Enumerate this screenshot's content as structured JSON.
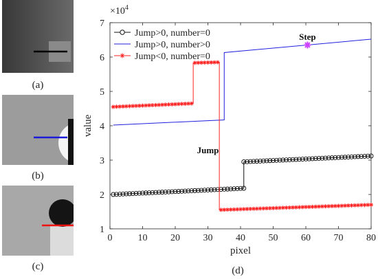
{
  "panels": [
    {
      "label": "(a)"
    },
    {
      "label": "(b)"
    },
    {
      "label": "(c)"
    },
    {
      "label": "(d)"
    }
  ],
  "colors": {
    "jump_pos_number_zero": "#111111",
    "jump_pos_number_pos": "#1f1fdd",
    "jump_neg_number_zero": "#ff2222",
    "step_marker": "#cc44ff"
  },
  "chart_data": {
    "type": "line",
    "xlabel": "pixel",
    "ylabel": "value",
    "exponent_label": "×10",
    "exponent_power": "4",
    "xlim": [
      0,
      80
    ],
    "ylim": [
      1,
      7
    ],
    "xticks": [
      0,
      10,
      20,
      30,
      40,
      50,
      60,
      70,
      80
    ],
    "yticks": [
      1,
      2,
      3,
      4,
      5,
      6,
      7
    ],
    "grid": false,
    "legend_position": "top-left",
    "annotations": [
      {
        "text": "Jump",
        "x": 30,
        "y": 3.2
      },
      {
        "text": "Step",
        "x": 60.5,
        "y": 6.5
      }
    ],
    "series": [
      {
        "name": "Jump>0, number=0",
        "marker": "circle",
        "segments": [
          {
            "x0": 1,
            "x1": 41,
            "y0": 2.0,
            "y1": 2.18
          },
          {
            "x0": 41,
            "x1": 80,
            "y0": 2.95,
            "y1": 3.12
          }
        ]
      },
      {
        "name": "Jump>0, number>0",
        "marker": "none",
        "segments": [
          {
            "x0": 1,
            "x1": 35,
            "y0": 4.02,
            "y1": 4.17
          },
          {
            "x0": 35,
            "x1": 80,
            "y0": 6.13,
            "y1": 6.52
          }
        ]
      },
      {
        "name": "Jump<0, number=0",
        "marker": "star",
        "segments": [
          {
            "x0": 1,
            "x1": 25.5,
            "y0": 4.55,
            "y1": 4.65
          },
          {
            "x0": 25.5,
            "x1": 33.5,
            "y0": 5.83,
            "y1": 5.85
          },
          {
            "x0": 33.5,
            "x1": 80,
            "y0": 1.55,
            "y1": 1.7
          }
        ]
      }
    ],
    "step_point": {
      "x": 60.5,
      "y": 6.35
    }
  }
}
